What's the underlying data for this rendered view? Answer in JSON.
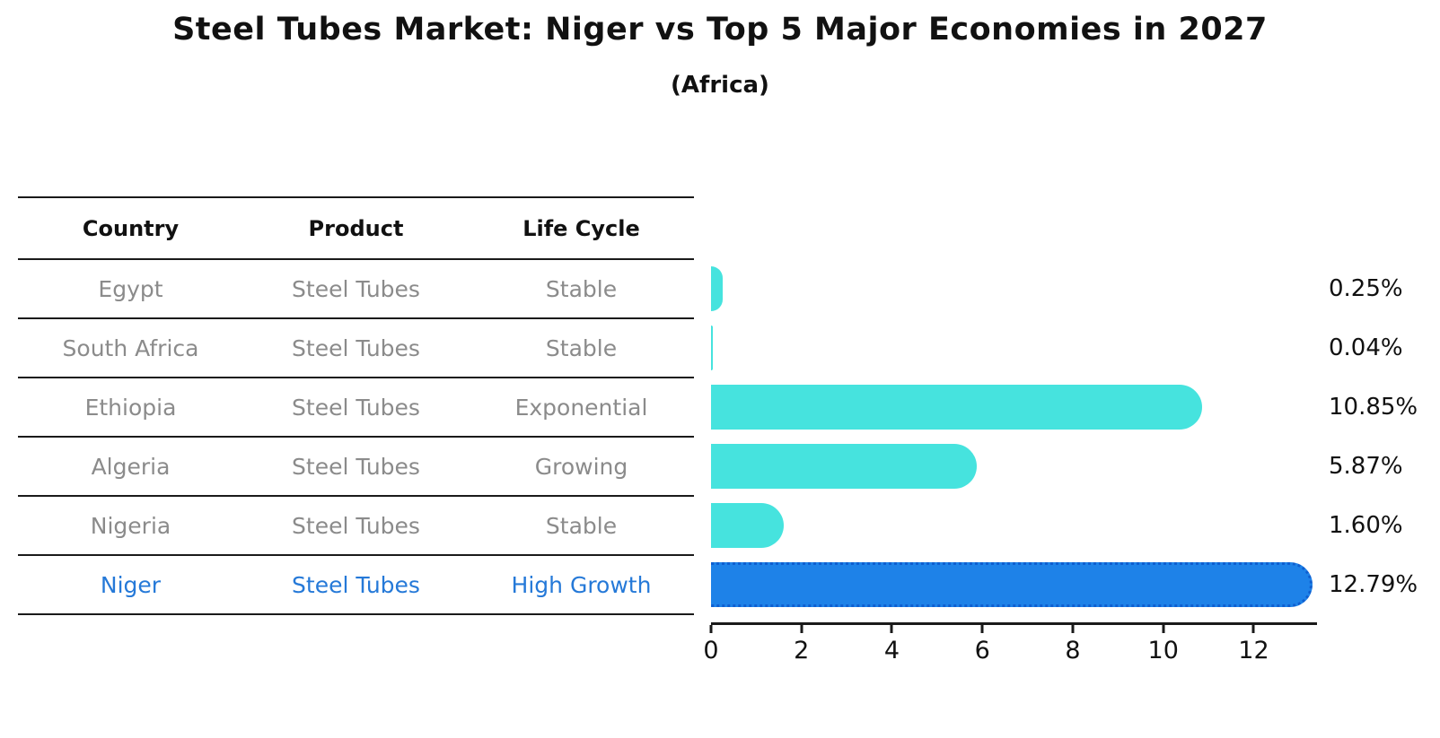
{
  "header": {
    "title": "Steel Tubes Market: Niger vs Top 5 Major Economies in 2027",
    "subtitle": "(Africa)"
  },
  "table": {
    "columns": [
      "Country",
      "Product",
      "Life Cycle"
    ],
    "rows": [
      {
        "country": "Egypt",
        "product": "Steel Tubes",
        "life_cycle": "Stable",
        "highlight": false
      },
      {
        "country": "South Africa",
        "product": "Steel Tubes",
        "life_cycle": "Stable",
        "highlight": false
      },
      {
        "country": "Ethiopia",
        "product": "Steel Tubes",
        "life_cycle": "Exponential",
        "highlight": false
      },
      {
        "country": "Algeria",
        "product": "Steel Tubes",
        "life_cycle": "Growing",
        "highlight": false
      },
      {
        "country": "Nigeria",
        "product": "Steel Tubes",
        "life_cycle": "Stable",
        "highlight": false
      },
      {
        "country": "Niger",
        "product": "Steel Tubes",
        "life_cycle": "High Growth",
        "highlight": true
      }
    ]
  },
  "chart_data": {
    "type": "bar",
    "orientation": "horizontal",
    "title": "Steel Tubes Market: Niger vs Top 5 Major Economies in 2027",
    "subtitle": "(Africa)",
    "categories": [
      "Egypt",
      "South Africa",
      "Ethiopia",
      "Algeria",
      "Nigeria",
      "Niger"
    ],
    "values": [
      0.25,
      0.04,
      10.85,
      5.87,
      1.6,
      12.79
    ],
    "value_labels": [
      "0.25%",
      "0.04%",
      "10.85%",
      "5.87%",
      "1.60%",
      "12.79%"
    ],
    "unit": "%",
    "highlight_category": "Niger",
    "x_ticks": [
      0,
      2,
      4,
      6,
      8,
      10,
      12
    ],
    "xlim": [
      0,
      13.4
    ],
    "grid": false,
    "legend": false,
    "colors": {
      "bar": "#46e3de",
      "highlight_bar": "#1e82e8",
      "highlight_edge": "#0f5fd0",
      "axis": "#1a1a1a",
      "row_text": "#8b8b8b",
      "highlight_text": "#2579d8",
      "value_text": "#111111"
    }
  }
}
